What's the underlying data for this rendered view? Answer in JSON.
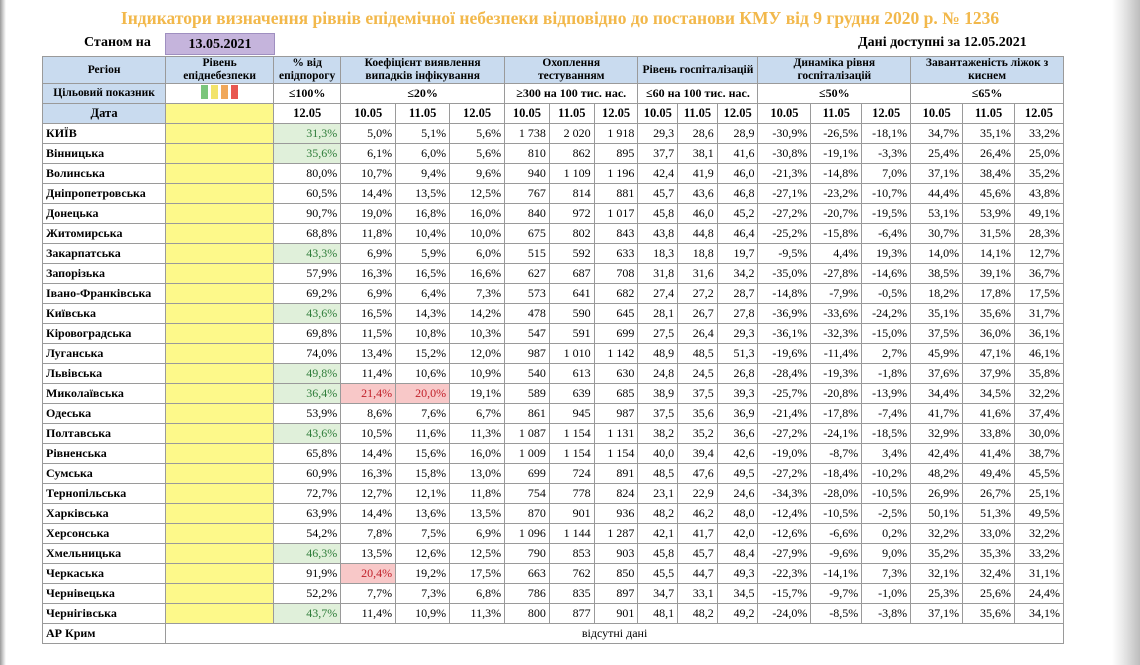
{
  "title": "Індикатори визначення рівнів епідемічної небезпеки відповідно до постанови КМУ від 9 грудня 2020 р. № 1236",
  "as_of_label": "Станом на",
  "as_of_date": "13.05.2021",
  "data_available": "Дані доступні за  12.05.2021",
  "headers": {
    "region": "Регіон",
    "level": "Рівень епіднебезпеки",
    "pct_threshold": "% від епідпорогу",
    "detection": "Коефіцієнт виявлення випадків інфікування",
    "testing": "Охоплення тестуванням",
    "hosp": "Рівень госпіталізацій",
    "hosp_dyn": "Динаміка рівня госпіталізацій",
    "oxygen": "Завантаженість ліжок з киснем"
  },
  "target": {
    "label": "Цільовий показник",
    "pct_threshold": "≤100%",
    "detection": "≤20%",
    "testing": "≥300 на 100 тис. нас.",
    "hosp": "≤60 на 100 тис. нас.",
    "hosp_dyn": "≤50%",
    "oxygen": "≤65%",
    "swatch_colors": [
      "#7bc67b",
      "#f2e36b",
      "#f0a85a",
      "#e8574f"
    ]
  },
  "date_label": "Дата",
  "dates": {
    "pct": "12.05",
    "three": [
      "10.05",
      "11.05",
      "12.05"
    ]
  },
  "rows": [
    {
      "region": "КИЇВ",
      "pct": "31,3%",
      "pct_c": "green",
      "det": [
        "5,0%",
        "5,1%",
        "5,6%"
      ],
      "det_c": [
        "",
        "",
        ""
      ],
      "test": [
        "1 738",
        "2 020",
        "1 918"
      ],
      "hosp": [
        "29,3",
        "28,6",
        "28,9"
      ],
      "dyn": [
        "-30,9%",
        "-26,5%",
        "-18,1%"
      ],
      "oxy": [
        "34,7%",
        "35,1%",
        "33,2%"
      ]
    },
    {
      "region": "Вінницька",
      "pct": "35,6%",
      "pct_c": "green",
      "det": [
        "6,1%",
        "6,0%",
        "5,6%"
      ],
      "det_c": [
        "",
        "",
        ""
      ],
      "test": [
        "810",
        "862",
        "895"
      ],
      "hosp": [
        "37,7",
        "38,1",
        "41,6"
      ],
      "dyn": [
        "-30,8%",
        "-19,1%",
        "-3,3%"
      ],
      "oxy": [
        "25,4%",
        "26,4%",
        "25,0%"
      ]
    },
    {
      "region": "Волинська",
      "pct": "80,0%",
      "pct_c": "",
      "det": [
        "10,7%",
        "9,4%",
        "9,6%"
      ],
      "det_c": [
        "",
        "",
        ""
      ],
      "test": [
        "940",
        "1 109",
        "1 196"
      ],
      "hosp": [
        "42,4",
        "41,9",
        "46,0"
      ],
      "dyn": [
        "-21,3%",
        "-14,8%",
        "7,0%"
      ],
      "oxy": [
        "37,1%",
        "38,4%",
        "35,2%"
      ]
    },
    {
      "region": "Дніпропетровська",
      "pct": "60,5%",
      "pct_c": "",
      "det": [
        "14,4%",
        "13,5%",
        "12,5%"
      ],
      "det_c": [
        "",
        "",
        ""
      ],
      "test": [
        "767",
        "814",
        "881"
      ],
      "hosp": [
        "45,7",
        "43,6",
        "46,8"
      ],
      "dyn": [
        "-27,1%",
        "-23,2%",
        "-10,7%"
      ],
      "oxy": [
        "44,4%",
        "45,6%",
        "43,8%"
      ]
    },
    {
      "region": "Донецька",
      "pct": "90,7%",
      "pct_c": "",
      "det": [
        "19,0%",
        "16,8%",
        "16,0%"
      ],
      "det_c": [
        "",
        "",
        ""
      ],
      "test": [
        "840",
        "972",
        "1 017"
      ],
      "hosp": [
        "45,8",
        "46,0",
        "45,2"
      ],
      "dyn": [
        "-27,2%",
        "-20,7%",
        "-19,5%"
      ],
      "oxy": [
        "53,1%",
        "53,9%",
        "49,1%"
      ]
    },
    {
      "region": "Житомирська",
      "pct": "68,8%",
      "pct_c": "",
      "det": [
        "11,8%",
        "10,4%",
        "10,0%"
      ],
      "det_c": [
        "",
        "",
        ""
      ],
      "test": [
        "675",
        "802",
        "843"
      ],
      "hosp": [
        "43,8",
        "44,8",
        "46,4"
      ],
      "dyn": [
        "-25,2%",
        "-15,8%",
        "-6,4%"
      ],
      "oxy": [
        "30,7%",
        "31,5%",
        "28,3%"
      ]
    },
    {
      "region": "Закарпатська",
      "pct": "43,3%",
      "pct_c": "green",
      "det": [
        "6,9%",
        "5,9%",
        "6,0%"
      ],
      "det_c": [
        "",
        "",
        ""
      ],
      "test": [
        "515",
        "592",
        "633"
      ],
      "hosp": [
        "18,3",
        "18,8",
        "19,7"
      ],
      "dyn": [
        "-9,5%",
        "4,4%",
        "19,3%"
      ],
      "oxy": [
        "14,0%",
        "14,1%",
        "12,7%"
      ]
    },
    {
      "region": "Запорізька",
      "pct": "57,9%",
      "pct_c": "",
      "det": [
        "16,3%",
        "16,5%",
        "16,6%"
      ],
      "det_c": [
        "",
        "",
        ""
      ],
      "test": [
        "627",
        "687",
        "708"
      ],
      "hosp": [
        "31,8",
        "31,6",
        "34,2"
      ],
      "dyn": [
        "-35,0%",
        "-27,8%",
        "-14,6%"
      ],
      "oxy": [
        "38,5%",
        "39,1%",
        "36,7%"
      ]
    },
    {
      "region": "Івано-Франківська",
      "pct": "69,2%",
      "pct_c": "",
      "det": [
        "6,9%",
        "6,4%",
        "7,3%"
      ],
      "det_c": [
        "",
        "",
        ""
      ],
      "test": [
        "573",
        "641",
        "682"
      ],
      "hosp": [
        "27,4",
        "27,2",
        "28,7"
      ],
      "dyn": [
        "-14,8%",
        "-7,9%",
        "-0,5%"
      ],
      "oxy": [
        "18,2%",
        "17,8%",
        "17,5%"
      ]
    },
    {
      "region": "Київська",
      "pct": "43,6%",
      "pct_c": "green",
      "det": [
        "16,5%",
        "14,3%",
        "14,2%"
      ],
      "det_c": [
        "",
        "",
        ""
      ],
      "test": [
        "478",
        "590",
        "645"
      ],
      "hosp": [
        "28,1",
        "26,7",
        "27,8"
      ],
      "dyn": [
        "-36,9%",
        "-33,6%",
        "-24,2%"
      ],
      "oxy": [
        "35,1%",
        "35,6%",
        "31,7%"
      ]
    },
    {
      "region": "Кіровоградська",
      "pct": "69,8%",
      "pct_c": "",
      "det": [
        "11,5%",
        "10,8%",
        "10,3%"
      ],
      "det_c": [
        "",
        "",
        ""
      ],
      "test": [
        "547",
        "591",
        "699"
      ],
      "hosp": [
        "27,5",
        "26,4",
        "29,3"
      ],
      "dyn": [
        "-36,1%",
        "-32,3%",
        "-15,0%"
      ],
      "oxy": [
        "37,5%",
        "36,0%",
        "36,1%"
      ]
    },
    {
      "region": "Луганська",
      "pct": "74,0%",
      "pct_c": "",
      "det": [
        "13,4%",
        "15,2%",
        "12,0%"
      ],
      "det_c": [
        "",
        "",
        ""
      ],
      "test": [
        "987",
        "1 010",
        "1 142"
      ],
      "hosp": [
        "48,9",
        "48,5",
        "51,3"
      ],
      "dyn": [
        "-19,6%",
        "-11,4%",
        "2,7%"
      ],
      "oxy": [
        "45,9%",
        "47,1%",
        "46,1%"
      ]
    },
    {
      "region": "Львівська",
      "pct": "49,8%",
      "pct_c": "green",
      "det": [
        "11,4%",
        "10,6%",
        "10,9%"
      ],
      "det_c": [
        "",
        "",
        ""
      ],
      "test": [
        "540",
        "613",
        "630"
      ],
      "hosp": [
        "24,8",
        "24,5",
        "26,8"
      ],
      "dyn": [
        "-28,4%",
        "-19,3%",
        "-1,8%"
      ],
      "oxy": [
        "37,6%",
        "37,9%",
        "35,8%"
      ]
    },
    {
      "region": "Миколаївська",
      "pct": "36,4%",
      "pct_c": "green",
      "det": [
        "21,4%",
        "20,0%",
        "19,1%"
      ],
      "det_c": [
        "red",
        "red",
        ""
      ],
      "test": [
        "589",
        "639",
        "685"
      ],
      "hosp": [
        "38,9",
        "37,5",
        "39,3"
      ],
      "dyn": [
        "-25,7%",
        "-20,8%",
        "-13,9%"
      ],
      "oxy": [
        "34,4%",
        "34,5%",
        "32,2%"
      ]
    },
    {
      "region": "Одеська",
      "pct": "53,9%",
      "pct_c": "",
      "det": [
        "8,6%",
        "7,6%",
        "6,7%"
      ],
      "det_c": [
        "",
        "",
        ""
      ],
      "test": [
        "861",
        "945",
        "987"
      ],
      "hosp": [
        "37,5",
        "35,6",
        "36,9"
      ],
      "dyn": [
        "-21,4%",
        "-17,8%",
        "-7,4%"
      ],
      "oxy": [
        "41,7%",
        "41,6%",
        "37,4%"
      ]
    },
    {
      "region": "Полтавська",
      "pct": "43,6%",
      "pct_c": "green",
      "det": [
        "10,5%",
        "11,6%",
        "11,3%"
      ],
      "det_c": [
        "",
        "",
        ""
      ],
      "test": [
        "1 087",
        "1 154",
        "1 131"
      ],
      "hosp": [
        "38,2",
        "35,2",
        "36,6"
      ],
      "dyn": [
        "-27,2%",
        "-24,1%",
        "-18,5%"
      ],
      "oxy": [
        "32,9%",
        "33,8%",
        "30,0%"
      ]
    },
    {
      "region": "Рівненська",
      "pct": "65,8%",
      "pct_c": "",
      "det": [
        "14,4%",
        "15,6%",
        "16,0%"
      ],
      "det_c": [
        "",
        "",
        ""
      ],
      "test": [
        "1 009",
        "1 154",
        "1 154"
      ],
      "hosp": [
        "40,0",
        "39,4",
        "42,6"
      ],
      "dyn": [
        "-19,0%",
        "-8,7%",
        "3,4%"
      ],
      "oxy": [
        "42,4%",
        "41,4%",
        "38,7%"
      ]
    },
    {
      "region": "Сумська",
      "pct": "60,9%",
      "pct_c": "",
      "det": [
        "16,3%",
        "15,8%",
        "13,0%"
      ],
      "det_c": [
        "",
        "",
        ""
      ],
      "test": [
        "699",
        "724",
        "891"
      ],
      "hosp": [
        "48,5",
        "47,6",
        "49,5"
      ],
      "dyn": [
        "-27,2%",
        "-18,4%",
        "-10,2%"
      ],
      "oxy": [
        "48,2%",
        "49,4%",
        "45,5%"
      ]
    },
    {
      "region": "Тернопільська",
      "pct": "72,7%",
      "pct_c": "",
      "det": [
        "12,7%",
        "12,1%",
        "11,8%"
      ],
      "det_c": [
        "",
        "",
        ""
      ],
      "test": [
        "754",
        "778",
        "824"
      ],
      "hosp": [
        "23,1",
        "22,9",
        "24,6"
      ],
      "dyn": [
        "-34,3%",
        "-28,0%",
        "-10,5%"
      ],
      "oxy": [
        "26,9%",
        "26,7%",
        "25,1%"
      ]
    },
    {
      "region": "Харківська",
      "pct": "63,9%",
      "pct_c": "",
      "det": [
        "14,4%",
        "13,6%",
        "13,5%"
      ],
      "det_c": [
        "",
        "",
        ""
      ],
      "test": [
        "870",
        "901",
        "936"
      ],
      "hosp": [
        "48,2",
        "46,2",
        "48,0"
      ],
      "dyn": [
        "-12,4%",
        "-10,5%",
        "-2,5%"
      ],
      "oxy": [
        "50,1%",
        "51,3%",
        "49,5%"
      ]
    },
    {
      "region": "Херсонська",
      "pct": "54,2%",
      "pct_c": "",
      "det": [
        "7,8%",
        "7,5%",
        "6,9%"
      ],
      "det_c": [
        "",
        "",
        ""
      ],
      "test": [
        "1 096",
        "1 144",
        "1 287"
      ],
      "hosp": [
        "42,1",
        "41,7",
        "42,0"
      ],
      "dyn": [
        "-12,6%",
        "-6,6%",
        "0,2%"
      ],
      "oxy": [
        "32,2%",
        "33,0%",
        "32,2%"
      ]
    },
    {
      "region": "Хмельницька",
      "pct": "46,3%",
      "pct_c": "green",
      "det": [
        "13,5%",
        "12,6%",
        "12,5%"
      ],
      "det_c": [
        "",
        "",
        ""
      ],
      "test": [
        "790",
        "853",
        "903"
      ],
      "hosp": [
        "45,8",
        "45,7",
        "48,4"
      ],
      "dyn": [
        "-27,9%",
        "-9,6%",
        "9,0%"
      ],
      "oxy": [
        "35,2%",
        "35,3%",
        "33,2%"
      ]
    },
    {
      "region": "Черкаська",
      "pct": "91,9%",
      "pct_c": "",
      "det": [
        "20,4%",
        "19,2%",
        "17,5%"
      ],
      "det_c": [
        "red",
        "",
        ""
      ],
      "test": [
        "663",
        "762",
        "850"
      ],
      "hosp": [
        "45,5",
        "44,7",
        "49,3"
      ],
      "dyn": [
        "-22,3%",
        "-14,1%",
        "7,3%"
      ],
      "oxy": [
        "32,1%",
        "32,4%",
        "31,1%"
      ]
    },
    {
      "region": "Чернівецька",
      "pct": "52,2%",
      "pct_c": "",
      "det": [
        "7,7%",
        "7,3%",
        "6,8%"
      ],
      "det_c": [
        "",
        "",
        ""
      ],
      "test": [
        "786",
        "835",
        "897"
      ],
      "hosp": [
        "34,7",
        "33,1",
        "34,5"
      ],
      "dyn": [
        "-15,7%",
        "-9,7%",
        "-1,0%"
      ],
      "oxy": [
        "25,3%",
        "25,6%",
        "24,4%"
      ]
    },
    {
      "region": "Чернігівська",
      "pct": "43,7%",
      "pct_c": "green",
      "det": [
        "11,4%",
        "10,9%",
        "11,3%"
      ],
      "det_c": [
        "",
        "",
        ""
      ],
      "test": [
        "800",
        "877",
        "901"
      ],
      "hosp": [
        "48,1",
        "48,2",
        "49,2"
      ],
      "dyn": [
        "-24,0%",
        "-8,5%",
        "-3,8%"
      ],
      "oxy": [
        "37,1%",
        "35,6%",
        "34,1%"
      ]
    }
  ],
  "crimea": {
    "region": "АР Крим",
    "note": "відсутні дані"
  }
}
